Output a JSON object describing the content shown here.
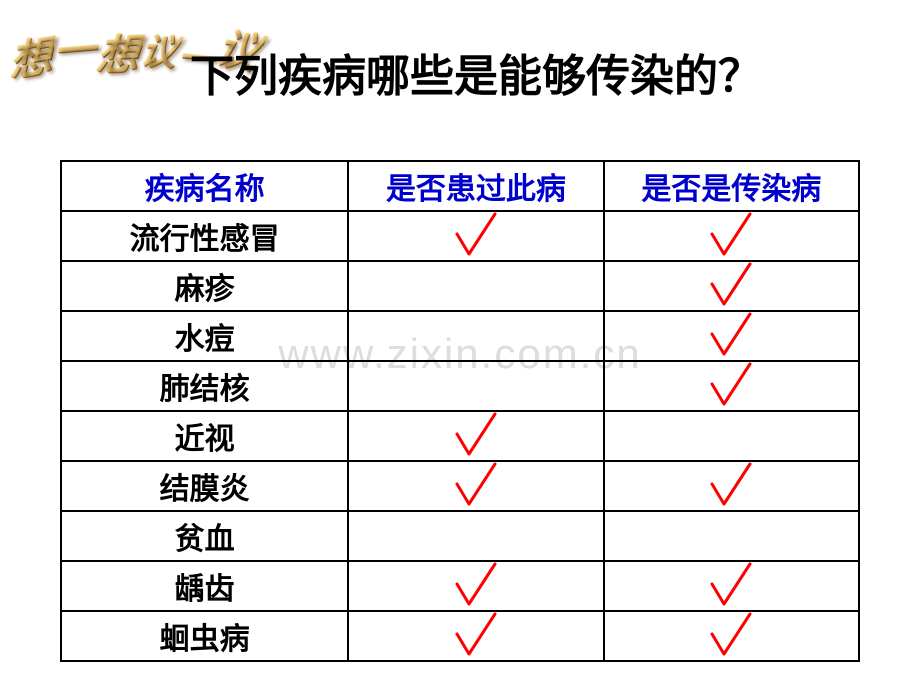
{
  "wordart": {
    "chars": [
      "想",
      "一",
      "想",
      "议",
      "一",
      "议"
    ],
    "color_gradient": [
      "#c97b1a",
      "#5a3a10",
      "#c97b1a"
    ]
  },
  "title": "下列疾病哪些是能够传染的？",
  "watermark": "www.zixin.com.cn",
  "table": {
    "headers": [
      "疾病名称",
      "是否患过此病",
      "是否是传染病"
    ],
    "header_color": "#0000cc",
    "border_color": "#000000",
    "name_color": "#000000",
    "rows": [
      {
        "name": "流行性感冒",
        "had": true,
        "infectious": true
      },
      {
        "name": "麻疹",
        "had": false,
        "infectious": true
      },
      {
        "name": "水痘",
        "had": false,
        "infectious": true
      },
      {
        "name": "肺结核",
        "had": false,
        "infectious": true
      },
      {
        "name": "近视",
        "had": true,
        "infectious": false
      },
      {
        "name": "结膜炎",
        "had": true,
        "infectious": true
      },
      {
        "name": "贫血",
        "had": false,
        "infectious": false
      },
      {
        "name": "龋齿",
        "had": true,
        "infectious": true
      },
      {
        "name": "蛔虫病",
        "had": true,
        "infectious": true
      }
    ]
  },
  "checkmark": {
    "stroke": "#ff0000",
    "stroke_width": 3,
    "width": 50,
    "height": 58
  }
}
